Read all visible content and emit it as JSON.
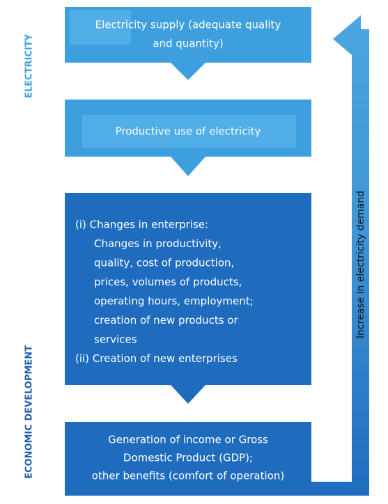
{
  "side_labels": [
    "ELECTRICITY",
    "ECONOMIC DEVELOPMENT"
  ],
  "boxes": [
    {
      "lines": [
        "Electricity supply (adequate quality",
        "and quantity)"
      ]
    },
    {
      "lines": [
        "Productive use of electricity"
      ]
    },
    {
      "lines": [
        "(i) Changes in enterprise:",
        "Changes in productivity,",
        "quality, cost of production,",
        "prices, volumes of products,",
        "operating hours, employment;",
        "creation of new products or",
        "services",
        "(ii) Creation of new enterprises"
      ]
    },
    {
      "lines": [
        "Generation of income or Gross",
        "Domestic Product (GDP);",
        "other benefits (comfort of operation)"
      ]
    }
  ],
  "feedback_label": "Increase in electricity demand"
}
